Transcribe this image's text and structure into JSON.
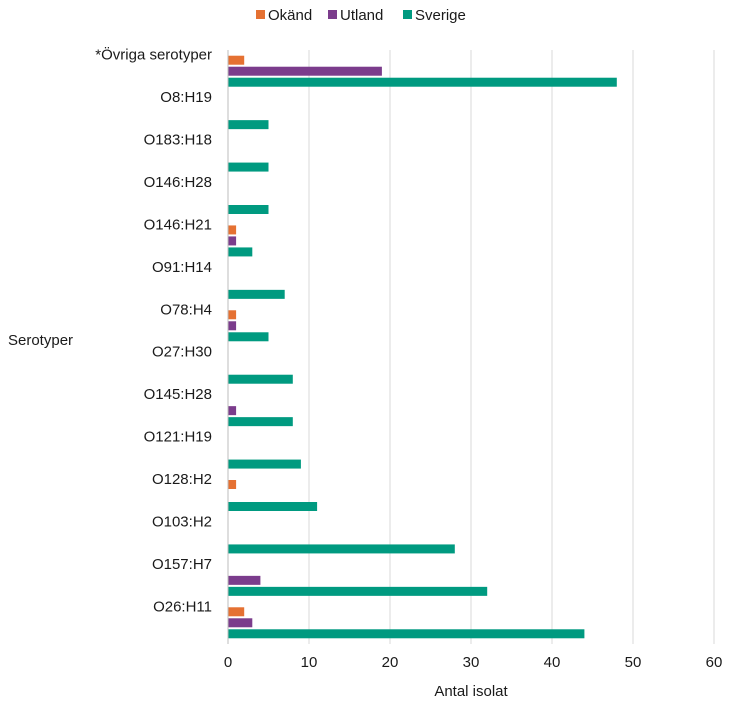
{
  "chart_data": {
    "type": "bar",
    "orientation": "horizontal",
    "categories": [
      "*Övriga serotyper",
      "O8:H19",
      "O183:H18",
      "O146:H28",
      "O146:H21",
      "O91:H14",
      "O78:H4",
      "O27:H30",
      "O145:H28",
      "O121:H19",
      "O128:H2",
      "O103:H2",
      "O157:H7",
      "O26:H11"
    ],
    "series": [
      {
        "name": "Okänd",
        "color": "#e57132",
        "values": [
          2,
          0,
          0,
          0,
          1,
          0,
          1,
          0,
          0,
          0,
          1,
          0,
          0,
          2
        ]
      },
      {
        "name": "Utland",
        "color": "#7b3c8c",
        "values": [
          19,
          0,
          0,
          0,
          1,
          0,
          1,
          0,
          1,
          0,
          0,
          0,
          4,
          3
        ]
      },
      {
        "name": "Sverige",
        "color": "#009a80",
        "values": [
          48,
          5,
          5,
          5,
          3,
          7,
          5,
          8,
          8,
          9,
          11,
          28,
          32,
          44
        ]
      }
    ],
    "xlabel": "Antal isolat",
    "ylabel": "Serotyper",
    "xlim": [
      0,
      60
    ],
    "xticks": [
      0,
      10,
      20,
      30,
      40,
      50,
      60
    ],
    "grid": "vertical",
    "legend": "top-center"
  }
}
